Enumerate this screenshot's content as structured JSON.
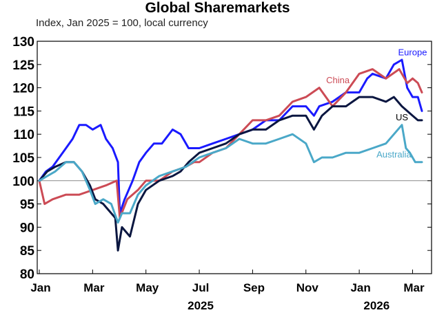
{
  "chart_data": {
    "type": "line",
    "title": "Global Sharemarkets",
    "subtitle": "Index, Jan 2025 = 100, local currency",
    "ylim": [
      80,
      130
    ],
    "yticks": [
      80,
      85,
      90,
      95,
      100,
      105,
      110,
      115,
      120,
      125,
      130
    ],
    "reference_line": 100,
    "grid": false,
    "xlim": [
      0,
      14.5
    ],
    "xticks": [
      {
        "x": 0,
        "label": "Jan"
      },
      {
        "x": 2,
        "label": "Mar"
      },
      {
        "x": 4,
        "label": "May"
      },
      {
        "x": 6,
        "label": "Jul"
      },
      {
        "x": 8,
        "label": "Sep"
      },
      {
        "x": 10,
        "label": "Nov"
      },
      {
        "x": 12,
        "label": "Jan"
      },
      {
        "x": 14,
        "label": "Mar"
      }
    ],
    "year_labels": [
      {
        "x": 6,
        "label": "2025"
      },
      {
        "x": 12.6,
        "label": "2026"
      }
    ],
    "series": [
      {
        "name": "Europe",
        "color": "#1a1aff",
        "points": [
          [
            0,
            100
          ],
          [
            0.25,
            102
          ],
          [
            0.5,
            103
          ],
          [
            0.75,
            105
          ],
          [
            1,
            107
          ],
          [
            1.25,
            109
          ],
          [
            1.5,
            112
          ],
          [
            1.75,
            112
          ],
          [
            2,
            111
          ],
          [
            2.3,
            112
          ],
          [
            2.5,
            109
          ],
          [
            2.75,
            107
          ],
          [
            2.95,
            104
          ],
          [
            3.02,
            93
          ],
          [
            3.2,
            96
          ],
          [
            3.5,
            100
          ],
          [
            3.75,
            104
          ],
          [
            4,
            106
          ],
          [
            4.3,
            108
          ],
          [
            4.6,
            108
          ],
          [
            5,
            111
          ],
          [
            5.3,
            110
          ],
          [
            5.6,
            107
          ],
          [
            6,
            107
          ],
          [
            6.5,
            108
          ],
          [
            7,
            109
          ],
          [
            7.5,
            110
          ],
          [
            8,
            111
          ],
          [
            8.5,
            113
          ],
          [
            9,
            113
          ],
          [
            9.5,
            116
          ],
          [
            10,
            116
          ],
          [
            10.3,
            114
          ],
          [
            10.5,
            116
          ],
          [
            11,
            117
          ],
          [
            11.5,
            119
          ],
          [
            12,
            119
          ],
          [
            12.3,
            122
          ],
          [
            12.5,
            123
          ],
          [
            13,
            122
          ],
          [
            13.3,
            125
          ],
          [
            13.6,
            126
          ],
          [
            13.8,
            120
          ],
          [
            14,
            118
          ],
          [
            14.2,
            118
          ],
          [
            14.35,
            115
          ]
        ]
      },
      {
        "name": "China",
        "color": "#cc4b55",
        "points": [
          [
            0,
            100
          ],
          [
            0.2,
            95
          ],
          [
            0.5,
            96
          ],
          [
            1,
            97
          ],
          [
            1.5,
            97
          ],
          [
            2,
            98
          ],
          [
            2.5,
            99
          ],
          [
            2.9,
            100
          ],
          [
            3.02,
            92
          ],
          [
            3.3,
            96
          ],
          [
            3.7,
            98
          ],
          [
            4,
            100
          ],
          [
            4.5,
            100
          ],
          [
            5,
            102
          ],
          [
            5.5,
            103
          ],
          [
            5.8,
            104
          ],
          [
            6,
            104
          ],
          [
            6.5,
            106
          ],
          [
            7,
            107
          ],
          [
            7.5,
            110
          ],
          [
            8,
            113
          ],
          [
            8.5,
            113
          ],
          [
            9,
            114
          ],
          [
            9.5,
            117
          ],
          [
            10,
            118
          ],
          [
            10.5,
            120
          ],
          [
            11,
            116
          ],
          [
            11.5,
            119
          ],
          [
            12,
            123
          ],
          [
            12.5,
            124
          ],
          [
            13,
            122
          ],
          [
            13.5,
            124
          ],
          [
            13.8,
            121
          ],
          [
            14,
            122
          ],
          [
            14.2,
            121
          ],
          [
            14.35,
            119
          ]
        ]
      },
      {
        "name": "US",
        "color": "#0a1640",
        "points": [
          [
            0,
            100
          ],
          [
            0.3,
            102
          ],
          [
            0.6,
            103
          ],
          [
            1,
            104
          ],
          [
            1.3,
            104
          ],
          [
            1.6,
            102
          ],
          [
            1.9,
            99
          ],
          [
            2.1,
            96
          ],
          [
            2.4,
            95
          ],
          [
            2.7,
            93
          ],
          [
            2.85,
            92
          ],
          [
            2.95,
            85
          ],
          [
            3.1,
            90
          ],
          [
            3.4,
            88
          ],
          [
            3.7,
            95
          ],
          [
            4,
            98
          ],
          [
            4.5,
            100
          ],
          [
            5,
            101
          ],
          [
            5.3,
            102
          ],
          [
            5.6,
            104
          ],
          [
            6,
            106
          ],
          [
            6.5,
            107
          ],
          [
            7,
            108
          ],
          [
            7.5,
            110
          ],
          [
            8,
            111
          ],
          [
            8.5,
            111
          ],
          [
            9,
            113
          ],
          [
            9.5,
            114
          ],
          [
            10,
            114
          ],
          [
            10.3,
            111
          ],
          [
            10.6,
            114
          ],
          [
            11,
            116
          ],
          [
            11.5,
            116
          ],
          [
            12,
            118
          ],
          [
            12.5,
            118
          ],
          [
            13,
            117
          ],
          [
            13.3,
            118
          ],
          [
            13.6,
            116
          ],
          [
            13.8,
            115
          ],
          [
            14,
            114
          ],
          [
            14.2,
            113
          ],
          [
            14.35,
            113
          ]
        ]
      },
      {
        "name": "Australia",
        "color": "#4aa8c8",
        "points": [
          [
            0,
            100
          ],
          [
            0.3,
            101
          ],
          [
            0.6,
            102
          ],
          [
            1,
            104
          ],
          [
            1.3,
            104
          ],
          [
            1.6,
            102
          ],
          [
            1.9,
            98
          ],
          [
            2.1,
            95
          ],
          [
            2.4,
            96
          ],
          [
            2.7,
            95
          ],
          [
            2.95,
            91
          ],
          [
            3.1,
            93
          ],
          [
            3.4,
            93
          ],
          [
            3.7,
            97
          ],
          [
            4,
            99
          ],
          [
            4.5,
            101
          ],
          [
            5,
            102
          ],
          [
            5.5,
            103
          ],
          [
            6,
            105
          ],
          [
            6.5,
            106
          ],
          [
            7,
            107
          ],
          [
            7.5,
            109
          ],
          [
            8,
            108
          ],
          [
            8.5,
            108
          ],
          [
            9,
            109
          ],
          [
            9.5,
            110
          ],
          [
            10,
            108
          ],
          [
            10.3,
            104
          ],
          [
            10.6,
            105
          ],
          [
            11,
            105
          ],
          [
            11.5,
            106
          ],
          [
            12,
            106
          ],
          [
            12.5,
            107
          ],
          [
            13,
            108
          ],
          [
            13.3,
            110
          ],
          [
            13.6,
            112
          ],
          [
            13.75,
            107
          ],
          [
            13.9,
            106
          ],
          [
            14.1,
            104
          ],
          [
            14.35,
            104
          ]
        ]
      }
    ],
    "series_labels": [
      {
        "name": "Europe",
        "x": 14.0,
        "y": 127
      },
      {
        "name": "China",
        "x": 11.2,
        "y": 121
      },
      {
        "name": "US",
        "x": 13.6,
        "y": 113
      },
      {
        "name": "Australia",
        "x": 13.3,
        "y": 105
      }
    ]
  }
}
